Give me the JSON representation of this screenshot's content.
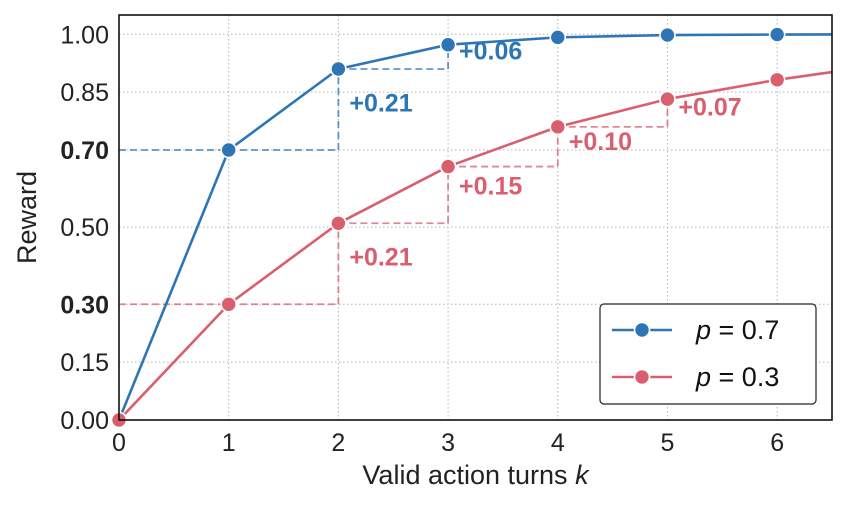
{
  "chart_data": {
    "type": "line",
    "xlabel": "Valid action turns",
    "xlabel_var": "k",
    "ylabel": "Reward",
    "xlim": [
      0,
      6.5
    ],
    "ylim": [
      0,
      1.05
    ],
    "grid": true,
    "legend_position": "bottom-right",
    "x_ticks": [
      "0",
      "1",
      "2",
      "3",
      "4",
      "5",
      "6"
    ],
    "y_ticks": [
      {
        "value": 0.0,
        "label": "0.00",
        "color": "#222222",
        "bold": false
      },
      {
        "value": 0.15,
        "label": "0.15",
        "color": "#222222",
        "bold": false
      },
      {
        "value": 0.3,
        "label": "0.30",
        "color": "#d95f6e",
        "bold": true
      },
      {
        "value": 0.5,
        "label": "0.50",
        "color": "#222222",
        "bold": false
      },
      {
        "value": 0.7,
        "label": "0.70",
        "color": "#2e75b6",
        "bold": true
      },
      {
        "value": 0.85,
        "label": "0.85",
        "color": "#222222",
        "bold": false
      },
      {
        "value": 1.0,
        "label": "1.00",
        "color": "#222222",
        "bold": false
      }
    ],
    "series": [
      {
        "name": "p = 0.7",
        "name_var": "p",
        "name_value": "= 0.7",
        "color": "#2e75b6",
        "x": [
          0,
          1,
          2,
          3,
          4,
          5,
          6
        ],
        "y": [
          0.0,
          0.7,
          0.91,
          0.973,
          0.992,
          0.998,
          0.9993
        ],
        "line_end": {
          "x": 6.5,
          "y": 0.9996
        }
      },
      {
        "name": "p = 0.3",
        "name_var": "p",
        "name_value": "= 0.3",
        "color": "#d95f6e",
        "x": [
          0,
          1,
          2,
          3,
          4,
          5,
          6
        ],
        "y": [
          0.0,
          0.3,
          0.51,
          0.657,
          0.76,
          0.832,
          0.882
        ],
        "line_end": {
          "x": 6.5,
          "y": 0.902
        }
      }
    ],
    "reference_lines": [
      {
        "color": "#2e75b6",
        "y": 0.7,
        "x_from": 0,
        "x_to": 2
      }
    ],
    "steps": [
      {
        "color": "#2e75b6",
        "x0": 2,
        "x1": 3,
        "y": 0.91
      },
      {
        "color": "#d95f6e",
        "x0": 0,
        "x1": 2,
        "y": 0.3
      },
      {
        "color": "#d95f6e",
        "x0": 2,
        "x1": 3,
        "y": 0.51
      },
      {
        "color": "#d95f6e",
        "x0": 3,
        "x1": 4,
        "y": 0.657
      },
      {
        "color": "#d95f6e",
        "x0": 4,
        "x1": 5,
        "y": 0.76
      }
    ],
    "risers": [
      {
        "color": "#2e75b6",
        "x": 2,
        "y0": 0.7,
        "y1": 0.91
      },
      {
        "color": "#2e75b6",
        "x": 3,
        "y0": 0.91,
        "y1": 0.973
      },
      {
        "color": "#d95f6e",
        "x": 2,
        "y0": 0.3,
        "y1": 0.51
      },
      {
        "color": "#d95f6e",
        "x": 3,
        "y0": 0.51,
        "y1": 0.657
      },
      {
        "color": "#d95f6e",
        "x": 4,
        "y0": 0.657,
        "y1": 0.76
      },
      {
        "color": "#d95f6e",
        "x": 5,
        "y0": 0.76,
        "y1": 0.832
      }
    ],
    "annotations": [
      {
        "text": "+0.21",
        "color": "#2e75b6",
        "x": 2.1,
        "y": 0.8
      },
      {
        "text": "+0.06",
        "color": "#2e75b6",
        "x": 3.1,
        "y": 0.935
      },
      {
        "text": "+0.21",
        "color": "#d95f6e",
        "x": 2.1,
        "y": 0.4
      },
      {
        "text": "+0.15",
        "color": "#d95f6e",
        "x": 3.1,
        "y": 0.585
      },
      {
        "text": "+0.10",
        "color": "#d95f6e",
        "x": 4.1,
        "y": 0.7
      },
      {
        "text": "+0.07",
        "color": "#d95f6e",
        "x": 5.1,
        "y": 0.79
      }
    ]
  }
}
